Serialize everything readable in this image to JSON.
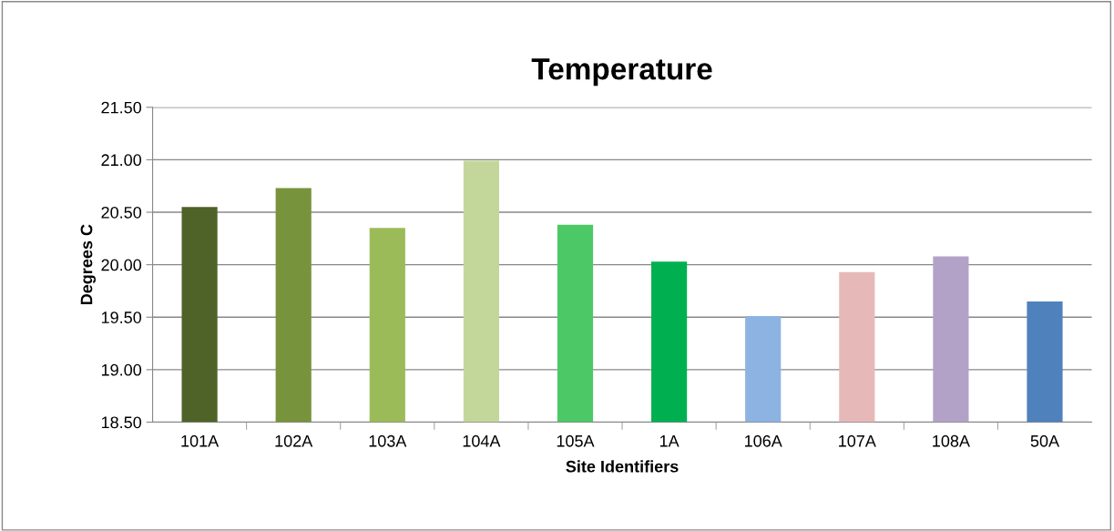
{
  "chart_data": {
    "type": "bar",
    "title": "Temperature",
    "xlabel": "Site Identifiers",
    "ylabel": "Degrees C",
    "categories": [
      "101A",
      "102A",
      "103A",
      "104A",
      "105A",
      "1A",
      "106A",
      "107A",
      "108A",
      "50A"
    ],
    "values": [
      20.55,
      20.73,
      20.35,
      20.99,
      20.38,
      20.03,
      19.51,
      19.93,
      20.08,
      19.65
    ],
    "colors": [
      "#4f6228",
      "#77933c",
      "#9bbb59",
      "#c4d79b",
      "#4dc866",
      "#00b050",
      "#8db3e2",
      "#e6b9b8",
      "#b3a2c7",
      "#4f81bd"
    ],
    "ylim": [
      18.5,
      21.5
    ],
    "yticks": [
      {
        "value": 18.5,
        "label": "18.50"
      },
      {
        "value": 19,
        "label": "19.00"
      },
      {
        "value": 19.5,
        "label": "19.50"
      },
      {
        "value": 20,
        "label": "20.00"
      },
      {
        "value": 20.5,
        "label": "20.50"
      },
      {
        "value": 21,
        "label": "21.00"
      },
      {
        "value": 21.5,
        "label": "21.50"
      }
    ],
    "grid": "y",
    "legend": false
  }
}
